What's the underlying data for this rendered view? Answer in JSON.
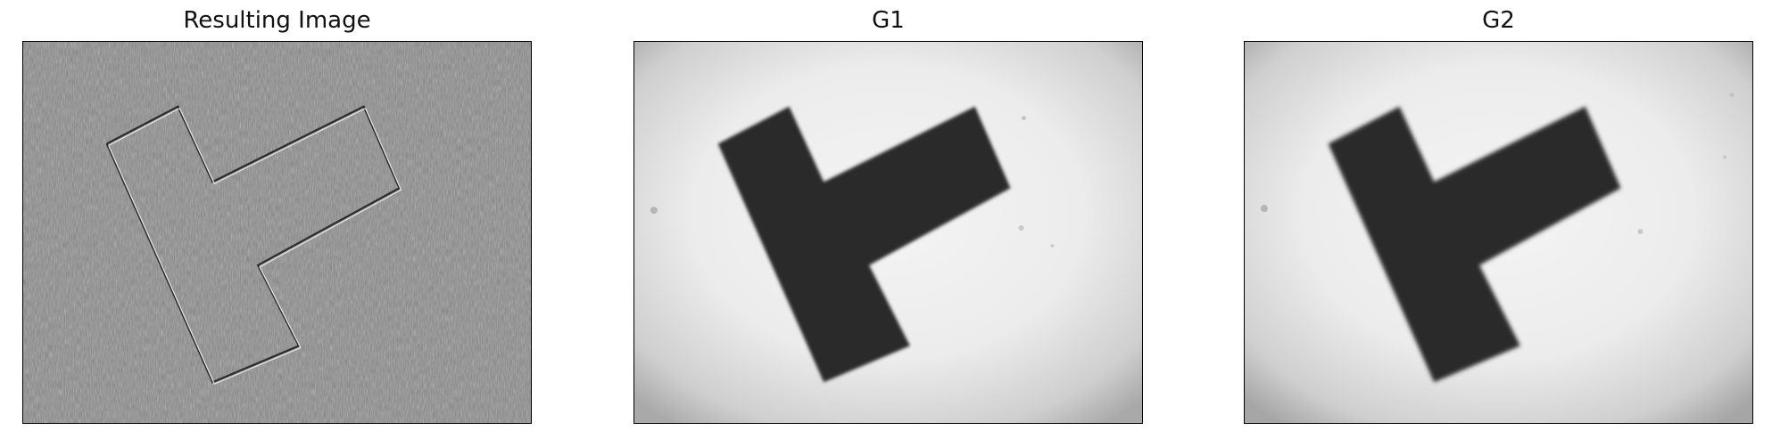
{
  "panels": [
    {
      "title": "Resulting Image"
    },
    {
      "title": "G1"
    },
    {
      "title": "G2"
    }
  ]
}
